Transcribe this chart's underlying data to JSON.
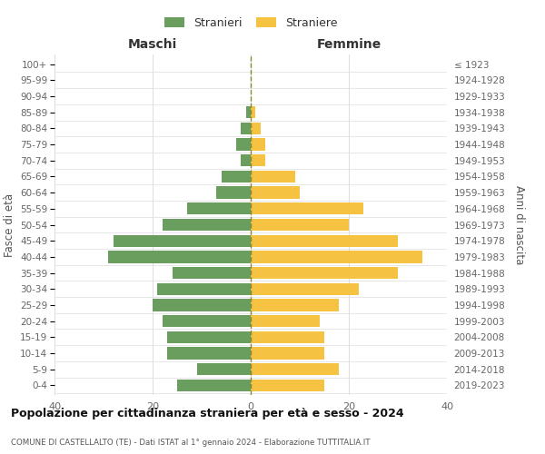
{
  "age_groups": [
    "0-4",
    "5-9",
    "10-14",
    "15-19",
    "20-24",
    "25-29",
    "30-34",
    "35-39",
    "40-44",
    "45-49",
    "50-54",
    "55-59",
    "60-64",
    "65-69",
    "70-74",
    "75-79",
    "80-84",
    "85-89",
    "90-94",
    "95-99",
    "100+"
  ],
  "birth_years": [
    "2019-2023",
    "2014-2018",
    "2009-2013",
    "2004-2008",
    "1999-2003",
    "1994-1998",
    "1989-1993",
    "1984-1988",
    "1979-1983",
    "1974-1978",
    "1969-1973",
    "1964-1968",
    "1959-1963",
    "1954-1958",
    "1949-1953",
    "1944-1948",
    "1939-1943",
    "1934-1938",
    "1929-1933",
    "1924-1928",
    "≤ 1923"
  ],
  "maschi": [
    15,
    11,
    17,
    17,
    18,
    20,
    19,
    16,
    29,
    28,
    18,
    13,
    7,
    6,
    2,
    3,
    2,
    1,
    0,
    0,
    0
  ],
  "femmine": [
    15,
    18,
    15,
    15,
    14,
    18,
    22,
    30,
    35,
    30,
    20,
    23,
    10,
    9,
    3,
    3,
    2,
    1,
    0,
    0,
    0
  ],
  "maschi_color": "#6a9e5e",
  "femmine_color": "#f5c242",
  "background_color": "#ffffff",
  "grid_color": "#dddddd",
  "center_line_color": "#888833",
  "title": "Popolazione per cittadinanza straniera per età e sesso - 2024",
  "subtitle": "COMUNE DI CASTELLALTO (TE) - Dati ISTAT al 1° gennaio 2024 - Elaborazione TUTTITALIA.IT",
  "xlabel_left": "Maschi",
  "xlabel_right": "Femmine",
  "ylabel_left": "Fasce di età",
  "ylabel_right": "Anni di nascita",
  "legend_maschi": "Stranieri",
  "legend_femmine": "Straniere",
  "xlim": 40,
  "bar_height": 0.75
}
